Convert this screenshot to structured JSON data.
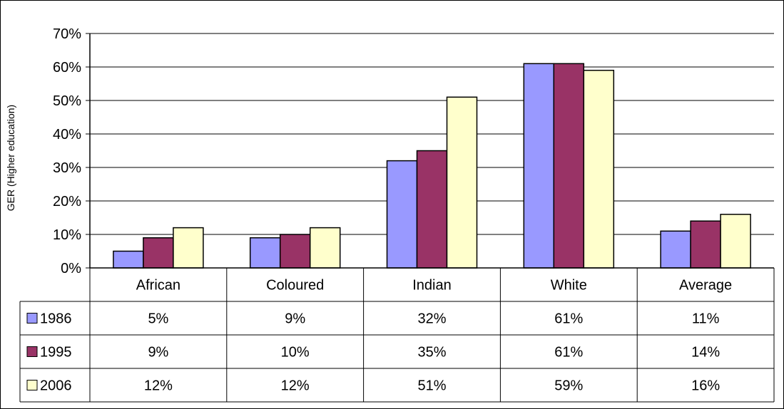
{
  "chart_data": {
    "type": "bar",
    "title": "",
    "ylabel": "GER (Higher education)",
    "xlabel": "",
    "ylim": [
      0,
      70
    ],
    "yticks": [
      "0%",
      "10%",
      "20%",
      "30%",
      "40%",
      "50%",
      "60%",
      "70%"
    ],
    "categories": [
      "African",
      "Coloured",
      "Indian",
      "White",
      "Average"
    ],
    "grid": true,
    "legend": "data-table",
    "series": [
      {
        "name": "1986",
        "color": "#9999ff",
        "values": [
          5,
          9,
          32,
          61,
          11
        ],
        "labels": [
          "5%",
          "9%",
          "32%",
          "61%",
          "11%"
        ]
      },
      {
        "name": "1995",
        "color": "#993366",
        "values": [
          9,
          10,
          35,
          61,
          14
        ],
        "labels": [
          "9%",
          "10%",
          "35%",
          "61%",
          "14%"
        ]
      },
      {
        "name": "2006",
        "color": "#ffffcc",
        "values": [
          12,
          12,
          51,
          59,
          16
        ],
        "labels": [
          "12%",
          "12%",
          "51%",
          "59%",
          "16%"
        ]
      }
    ]
  }
}
